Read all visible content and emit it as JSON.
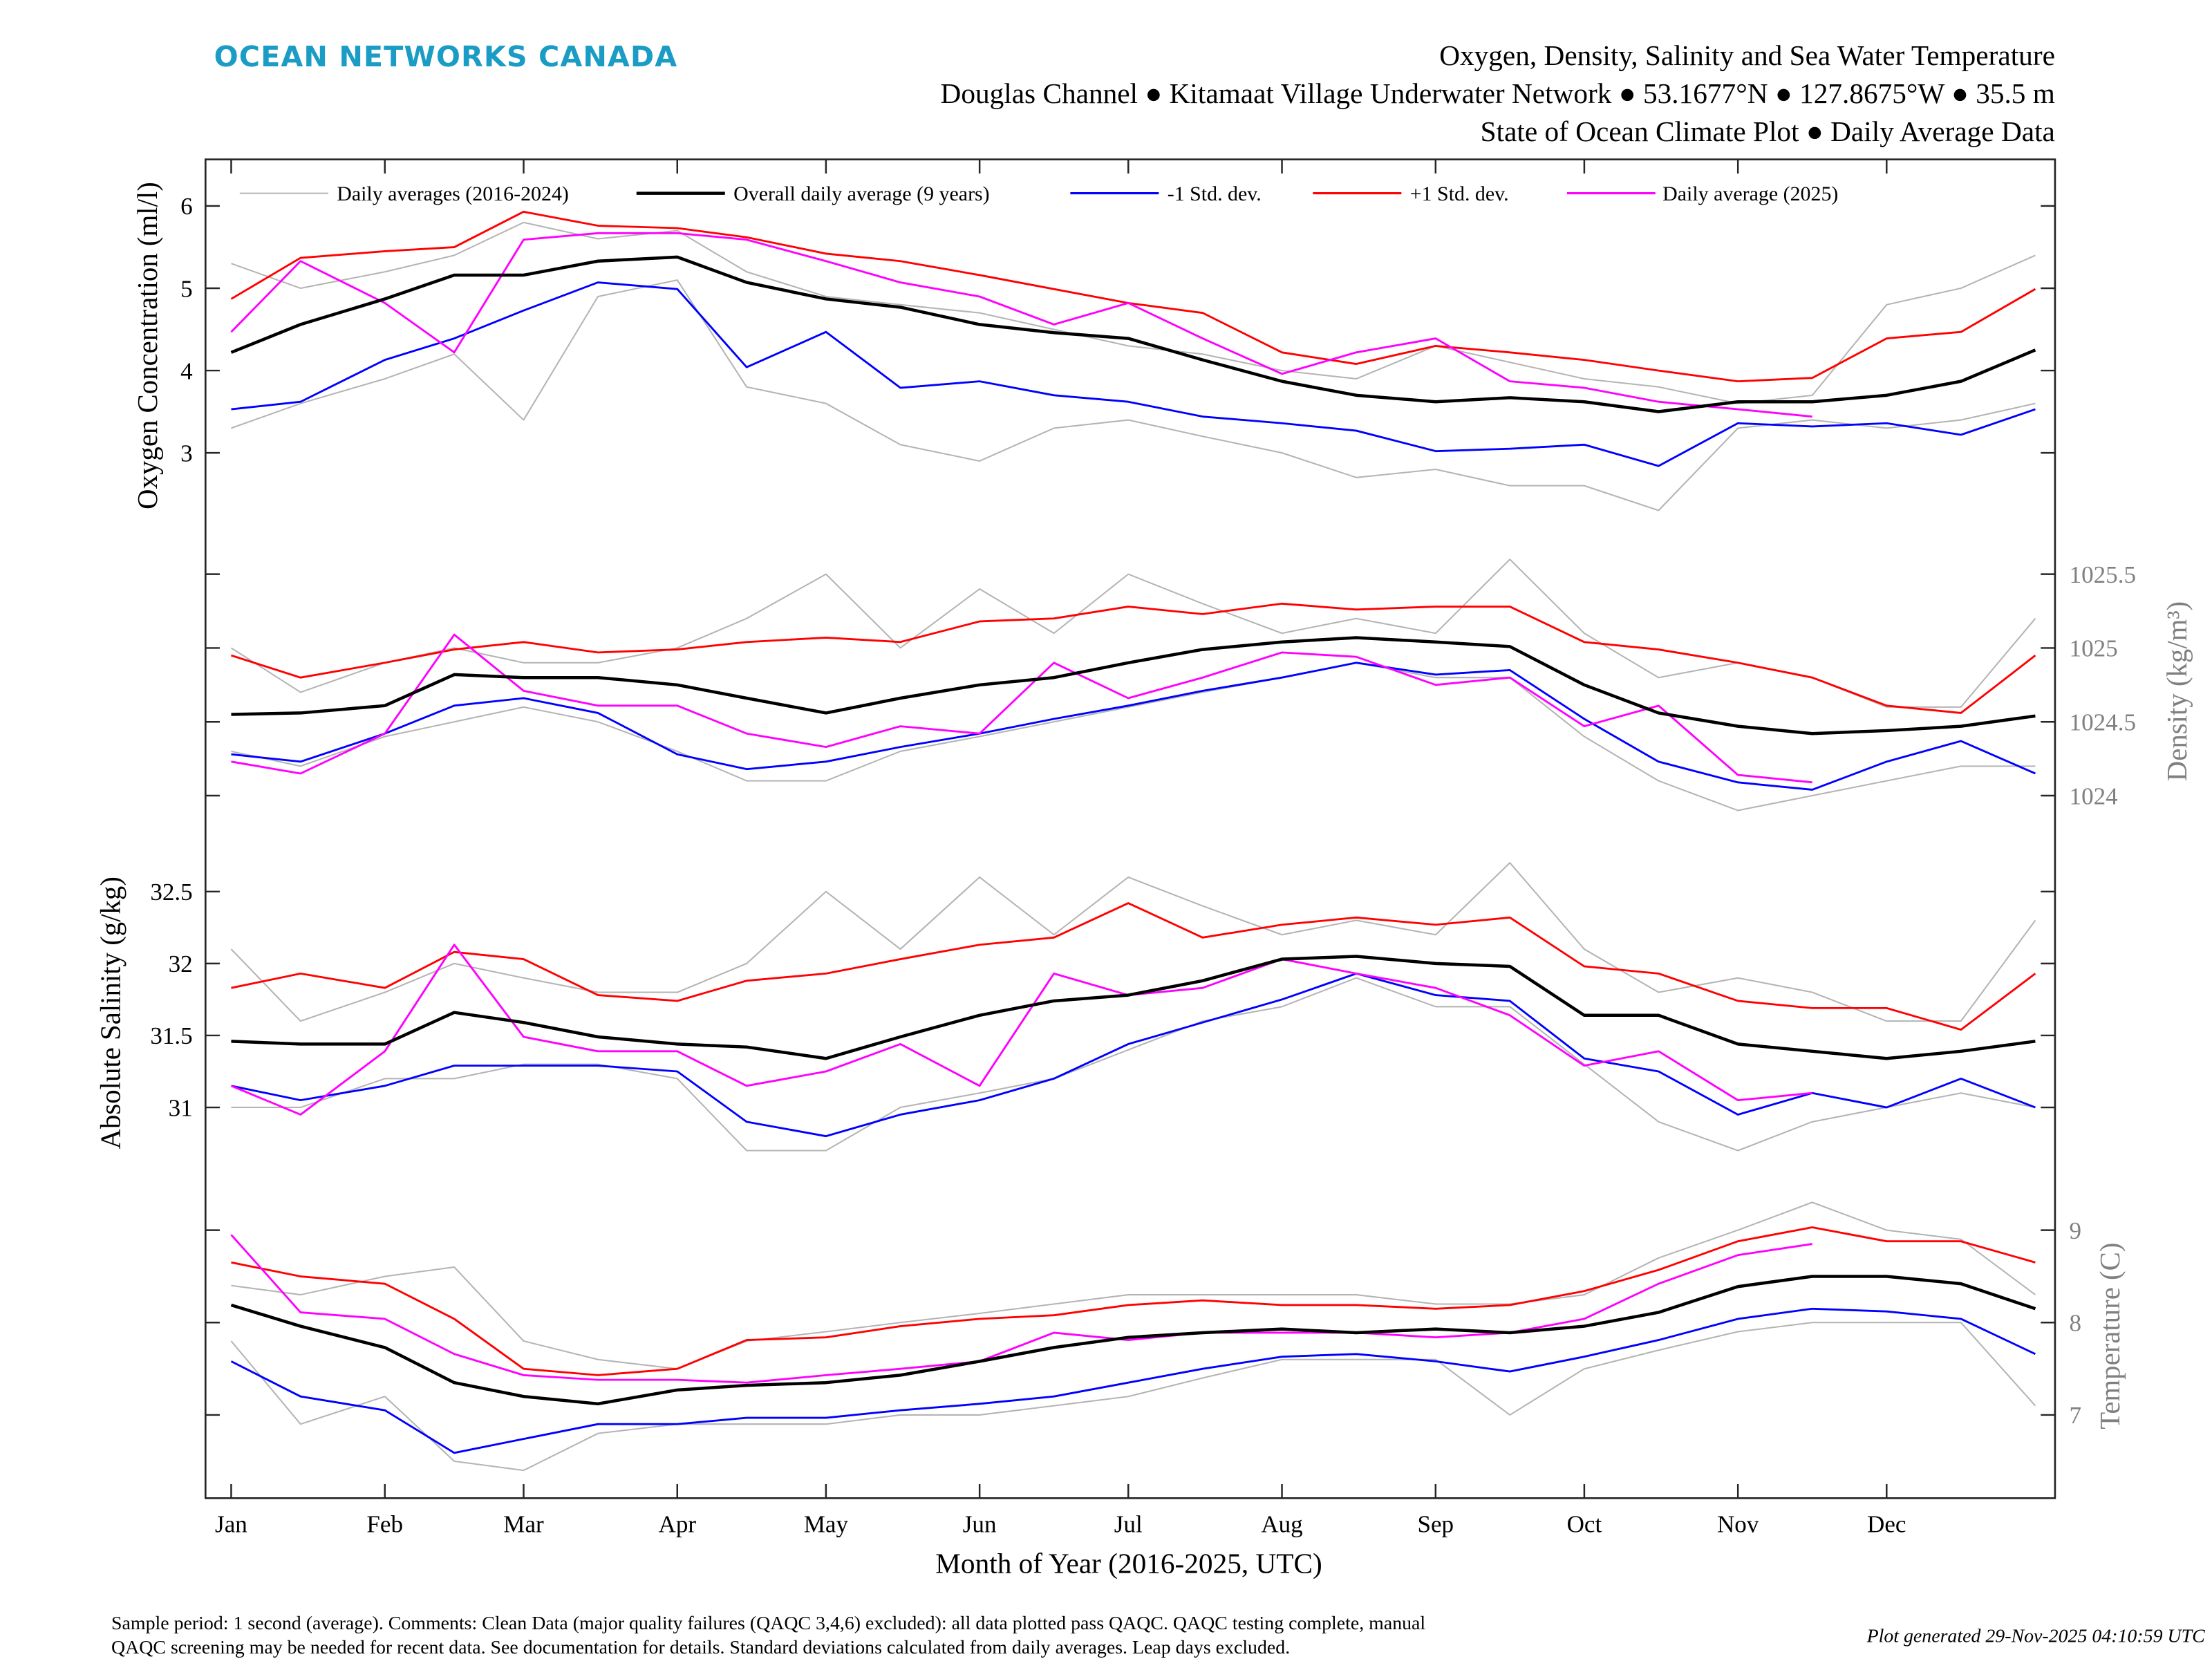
{
  "header": {
    "logo": "OCEAN NETWORKS CANADA",
    "title": "Oxygen, Density, Salinity and Sea Water Temperature",
    "subtitle": "Douglas Channel ● Kitamaat Village Underwater Network ● 53.1677°N ● 127.8675°W ● 35.5 m",
    "subtitle2": "State of Ocean Climate Plot ● Daily Average Data"
  },
  "legend": [
    {
      "label": "Daily averages (2016-2024)",
      "color": "#b4b4b4"
    },
    {
      "label": "Overall daily average (9 years)",
      "color": "#000000"
    },
    {
      "label": "-1 Std. dev.",
      "color": "#0000ff"
    },
    {
      "label": "+1 Std. dev.",
      "color": "#ff0000"
    },
    {
      "label": "Daily average (2025)",
      "color": "#ff00ff"
    }
  ],
  "xaxis": {
    "label": "Month of Year (2016-2025, UTC)",
    "ticks": [
      "Jan",
      "Feb",
      "Mar",
      "Apr",
      "May",
      "Jun",
      "Jul",
      "Aug",
      "Sep",
      "Oct",
      "Nov",
      "Dec"
    ]
  },
  "footer": {
    "line1": "Sample period: 1 second (average). Comments: Clean Data (major quality failures (QAQC 3,4,6) excluded): all data plotted pass QAQC. QAQC testing complete, manual",
    "line2": "QAQC screening may be needed for recent data. See documentation for details. Standard deviations calculated from daily averages. Leap days excluded.",
    "generated": "Plot generated 29-Nov-2025 04:10:59 UTC"
  },
  "chart_data": [
    {
      "type": "line",
      "ylabel": "Oxygen Concentration (ml/l)",
      "yaxis_side": "left",
      "yticks": [
        "3",
        "4",
        "5",
        "6"
      ],
      "ylim": [
        2.1,
        6.55
      ],
      "grid": false,
      "legend_position": "top",
      "x": [
        "01-01",
        "01-15",
        "02-01",
        "02-15",
        "03-01",
        "03-16",
        "04-01",
        "04-15",
        "05-01",
        "05-16",
        "06-01",
        "06-16",
        "07-01",
        "07-16",
        "08-01",
        "08-16",
        "09-01",
        "09-16",
        "10-01",
        "10-16",
        "11-01",
        "11-16",
        "12-01",
        "12-16",
        "12-31"
      ],
      "series": [
        {
          "name": "Daily averages (2016-2024)",
          "color": "#b4b4b4",
          "values": [
            5.3,
            5.0,
            5.2,
            5.4,
            5.8,
            5.6,
            5.7,
            5.2,
            4.9,
            4.8,
            4.7,
            4.5,
            4.3,
            4.2,
            4.0,
            3.9,
            4.3,
            4.1,
            3.9,
            3.8,
            3.6,
            3.7,
            4.8,
            5.0,
            5.4
          ]
        },
        {
          "name": "Daily averages (2016-2024)",
          "color": "#b4b4b4",
          "values": [
            3.3,
            3.6,
            3.9,
            4.2,
            3.4,
            4.9,
            5.1,
            3.8,
            3.6,
            3.1,
            2.9,
            3.3,
            3.4,
            3.2,
            3.0,
            2.7,
            2.8,
            2.6,
            2.6,
            2.3,
            3.3,
            3.4,
            3.3,
            3.4,
            3.6
          ]
        },
        {
          "name": "+1 Std. dev.",
          "color": "#ff0000",
          "values": [
            4.87,
            5.37,
            5.45,
            5.5,
            5.93,
            5.76,
            5.73,
            5.62,
            5.42,
            5.33,
            5.16,
            4.99,
            4.82,
            4.7,
            4.22,
            4.08,
            4.3,
            4.22,
            4.13,
            4.0,
            3.87,
            3.91,
            4.39,
            4.47,
            4.99
          ]
        },
        {
          "name": "-1 Std. dev.",
          "color": "#0000ff",
          "values": [
            3.53,
            3.62,
            4.13,
            4.39,
            4.73,
            5.07,
            4.99,
            4.04,
            4.47,
            3.79,
            3.87,
            3.7,
            3.62,
            3.44,
            3.36,
            3.27,
            3.02,
            3.05,
            3.1,
            2.84,
            3.36,
            3.32,
            3.36,
            3.22,
            3.53
          ]
        },
        {
          "name": "Daily average (2025)",
          "color": "#ff00ff",
          "values": [
            4.47,
            5.33,
            4.82,
            4.22,
            5.59,
            5.67,
            5.67,
            5.59,
            5.33,
            5.07,
            4.9,
            4.56,
            4.82,
            4.39,
            3.96,
            4.22,
            4.39,
            3.87,
            3.79,
            3.62,
            3.53,
            3.44,
            null,
            null,
            null
          ]
        },
        {
          "name": "Overall daily average (9 years)",
          "color": "#000000",
          "values": [
            4.22,
            4.56,
            4.87,
            5.16,
            5.16,
            5.33,
            5.38,
            5.07,
            4.87,
            4.77,
            4.56,
            4.46,
            4.39,
            4.13,
            3.87,
            3.7,
            3.62,
            3.67,
            3.62,
            3.5,
            3.62,
            3.62,
            3.7,
            3.87,
            4.25
          ]
        }
      ]
    },
    {
      "type": "line",
      "ylabel": "Density (kg/m³)",
      "yaxis_side": "right",
      "yticks": [
        "1024",
        "1024.5",
        "1025",
        "1025.5"
      ],
      "ylim": [
        1023.8,
        1025.8
      ],
      "grid": false,
      "x": [
        "01-01",
        "01-15",
        "02-01",
        "02-15",
        "03-01",
        "03-16",
        "04-01",
        "04-15",
        "05-01",
        "05-16",
        "06-01",
        "06-16",
        "07-01",
        "07-16",
        "08-01",
        "08-16",
        "09-01",
        "09-16",
        "10-01",
        "10-16",
        "11-01",
        "11-16",
        "12-01",
        "12-16",
        "12-31"
      ],
      "series": [
        {
          "name": "Daily averages (2016-2024)",
          "color": "#b4b4b4",
          "values": [
            1025.0,
            1024.7,
            1024.9,
            1025.0,
            1024.9,
            1024.9,
            1025.0,
            1025.2,
            1025.5,
            1025.0,
            1025.4,
            1025.1,
            1025.5,
            1025.3,
            1025.1,
            1025.2,
            1025.1,
            1025.6,
            1025.1,
            1024.8,
            1024.9,
            1024.8,
            1024.6,
            1024.6,
            1025.2
          ]
        },
        {
          "name": "Daily averages (2016-2024)",
          "color": "#b4b4b4",
          "values": [
            1024.3,
            1024.2,
            1024.4,
            1024.5,
            1024.6,
            1024.5,
            1024.3,
            1024.1,
            1024.1,
            1024.3,
            1024.4,
            1024.5,
            1024.6,
            1024.7,
            1024.8,
            1024.9,
            1024.8,
            1024.8,
            1024.4,
            1024.1,
            1023.9,
            1024.0,
            1024.1,
            1024.2,
            1024.2
          ]
        },
        {
          "name": "+1 Std. dev.",
          "color": "#ff0000",
          "values": [
            1024.95,
            1024.8,
            1024.9,
            1024.99,
            1025.04,
            1024.97,
            1024.99,
            1025.04,
            1025.07,
            1025.04,
            1025.18,
            1025.2,
            1025.28,
            1025.23,
            1025.3,
            1025.26,
            1025.28,
            1025.28,
            1025.04,
            1024.99,
            1024.9,
            1024.8,
            1024.61,
            1024.56,
            1024.95
          ]
        },
        {
          "name": "-1 Std. dev.",
          "color": "#0000ff",
          "values": [
            1024.28,
            1024.23,
            1024.42,
            1024.61,
            1024.66,
            1024.56,
            1024.28,
            1024.18,
            1024.23,
            1024.33,
            1024.42,
            1024.52,
            1024.61,
            1024.71,
            1024.8,
            1024.9,
            1024.82,
            1024.85,
            1024.52,
            1024.23,
            1024.09,
            1024.04,
            1024.23,
            1024.37,
            1024.15
          ]
        },
        {
          "name": "Daily average (2025)",
          "color": "#ff00ff",
          "values": [
            1024.23,
            1024.15,
            1024.42,
            1025.09,
            1024.71,
            1024.61,
            1024.61,
            1024.42,
            1024.33,
            1024.47,
            1024.42,
            1024.9,
            1024.66,
            1024.8,
            1024.97,
            1024.94,
            1024.75,
            1024.8,
            1024.47,
            1024.61,
            1024.14,
            1024.09,
            null,
            null,
            null
          ]
        },
        {
          "name": "Overall daily average (9 years)",
          "color": "#000000",
          "values": [
            1024.55,
            1024.56,
            1024.61,
            1024.82,
            1024.8,
            1024.8,
            1024.75,
            1024.66,
            1024.56,
            1024.66,
            1024.75,
            1024.8,
            1024.9,
            1024.99,
            1025.04,
            1025.07,
            1025.04,
            1025.01,
            1024.75,
            1024.56,
            1024.47,
            1024.42,
            1024.44,
            1024.47,
            1024.54
          ]
        }
      ]
    },
    {
      "type": "line",
      "ylabel": "Absolute Salinity (g/kg)",
      "yaxis_side": "left",
      "yticks": [
        "31",
        "31.5",
        "32",
        "32.5"
      ],
      "ylim": [
        30.6,
        32.8
      ],
      "grid": false,
      "x": [
        "01-01",
        "01-15",
        "02-01",
        "02-15",
        "03-01",
        "03-16",
        "04-01",
        "04-15",
        "05-01",
        "05-16",
        "06-01",
        "06-16",
        "07-01",
        "07-16",
        "08-01",
        "08-16",
        "09-01",
        "09-16",
        "10-01",
        "10-16",
        "11-01",
        "11-16",
        "12-01",
        "12-16",
        "12-31"
      ],
      "series": [
        {
          "name": "Daily averages (2016-2024)",
          "color": "#b4b4b4",
          "values": [
            32.1,
            31.6,
            31.8,
            32.0,
            31.9,
            31.8,
            31.8,
            32.0,
            32.5,
            32.1,
            32.6,
            32.2,
            32.6,
            32.4,
            32.2,
            32.3,
            32.2,
            32.7,
            32.1,
            31.8,
            31.9,
            31.8,
            31.6,
            31.6,
            32.3
          ]
        },
        {
          "name": "Daily averages (2016-2024)",
          "color": "#b4b4b4",
          "values": [
            31.0,
            31.0,
            31.2,
            31.2,
            31.3,
            31.3,
            31.2,
            30.7,
            30.7,
            31.0,
            31.1,
            31.2,
            31.4,
            31.6,
            31.7,
            31.9,
            31.7,
            31.7,
            31.3,
            30.9,
            30.7,
            30.9,
            31.0,
            31.1,
            31.0
          ]
        },
        {
          "name": "+1 Std. dev.",
          "color": "#ff0000",
          "values": [
            31.83,
            31.93,
            31.83,
            32.08,
            32.03,
            31.78,
            31.74,
            31.88,
            31.93,
            32.03,
            32.13,
            32.18,
            32.42,
            32.18,
            32.27,
            32.32,
            32.27,
            32.32,
            31.98,
            31.93,
            31.74,
            31.69,
            31.69,
            31.54,
            31.93
          ]
        },
        {
          "name": "-1 Std. dev.",
          "color": "#0000ff",
          "values": [
            31.15,
            31.05,
            31.15,
            31.29,
            31.29,
            31.29,
            31.25,
            30.9,
            30.8,
            30.95,
            31.05,
            31.2,
            31.44,
            31.59,
            31.75,
            31.93,
            31.78,
            31.74,
            31.34,
            31.25,
            30.95,
            31.1,
            31.0,
            31.2,
            31.0
          ]
        },
        {
          "name": "Daily average (2025)",
          "color": "#ff00ff",
          "values": [
            31.15,
            30.95,
            31.39,
            32.13,
            31.49,
            31.39,
            31.39,
            31.15,
            31.25,
            31.44,
            31.15,
            31.93,
            31.78,
            31.83,
            32.03,
            31.93,
            31.83,
            31.64,
            31.29,
            31.39,
            31.05,
            31.1,
            null,
            null,
            null
          ]
        },
        {
          "name": "Overall daily average (9 years)",
          "color": "#000000",
          "values": [
            31.46,
            31.44,
            31.44,
            31.66,
            31.59,
            31.49,
            31.44,
            31.42,
            31.34,
            31.49,
            31.64,
            31.74,
            31.78,
            31.88,
            32.03,
            32.05,
            32.0,
            31.98,
            31.64,
            31.64,
            31.44,
            31.39,
            31.34,
            31.39,
            31.46
          ]
        }
      ]
    },
    {
      "type": "line",
      "ylabel": "Temperature (C)",
      "yaxis_side": "right",
      "yticks": [
        "7",
        "8",
        "9"
      ],
      "ylim": [
        6.1,
        9.6
      ],
      "grid": false,
      "x": [
        "01-01",
        "01-15",
        "02-01",
        "02-15",
        "03-01",
        "03-16",
        "04-01",
        "04-15",
        "05-01",
        "05-16",
        "06-01",
        "06-16",
        "07-01",
        "07-16",
        "08-01",
        "08-16",
        "09-01",
        "09-16",
        "10-01",
        "10-16",
        "11-01",
        "11-16",
        "12-01",
        "12-16",
        "12-31"
      ],
      "series": [
        {
          "name": "Daily averages (2016-2024)",
          "color": "#b4b4b4",
          "values": [
            8.4,
            8.3,
            8.5,
            8.6,
            7.8,
            7.6,
            7.5,
            7.8,
            7.9,
            8.0,
            8.1,
            8.2,
            8.3,
            8.3,
            8.3,
            8.3,
            8.2,
            8.2,
            8.3,
            8.7,
            9.0,
            9.3,
            9.0,
            8.9,
            8.3
          ]
        },
        {
          "name": "Daily averages (2016-2024)",
          "color": "#b4b4b4",
          "values": [
            7.8,
            6.9,
            7.2,
            6.5,
            6.4,
            6.8,
            6.9,
            6.9,
            6.9,
            7.0,
            7.0,
            7.1,
            7.2,
            7.4,
            7.6,
            7.6,
            7.6,
            7.0,
            7.5,
            7.7,
            7.9,
            8.0,
            8.0,
            8.0,
            7.1
          ]
        },
        {
          "name": "+1 Std. dev.",
          "color": "#ff0000",
          "values": [
            8.65,
            8.5,
            8.42,
            8.04,
            7.5,
            7.43,
            7.5,
            7.81,
            7.84,
            7.96,
            8.04,
            8.08,
            8.19,
            8.24,
            8.19,
            8.19,
            8.15,
            8.19,
            8.34,
            8.57,
            8.88,
            9.03,
            8.88,
            8.88,
            8.65
          ]
        },
        {
          "name": "-1 Std. dev.",
          "color": "#0000ff",
          "values": [
            7.58,
            7.2,
            7.05,
            6.59,
            6.74,
            6.9,
            6.9,
            6.97,
            6.97,
            7.05,
            7.12,
            7.2,
            7.35,
            7.5,
            7.63,
            7.66,
            7.58,
            7.47,
            7.63,
            7.81,
            8.04,
            8.15,
            8.12,
            8.04,
            7.66
          ]
        },
        {
          "name": "Daily average (2025)",
          "color": "#ff00ff",
          "values": [
            8.95,
            8.11,
            8.04,
            7.66,
            7.43,
            7.38,
            7.38,
            7.35,
            7.43,
            7.5,
            7.58,
            7.89,
            7.81,
            7.89,
            7.89,
            7.89,
            7.84,
            7.89,
            8.04,
            8.42,
            8.73,
            8.85,
            null,
            null,
            null
          ]
        },
        {
          "name": "Overall daily average (9 years)",
          "color": "#000000",
          "values": [
            8.19,
            7.96,
            7.73,
            7.35,
            7.2,
            7.12,
            7.27,
            7.32,
            7.35,
            7.43,
            7.58,
            7.73,
            7.84,
            7.89,
            7.93,
            7.89,
            7.93,
            7.89,
            7.96,
            8.11,
            8.39,
            8.5,
            8.5,
            8.42,
            8.15
          ]
        }
      ]
    }
  ]
}
